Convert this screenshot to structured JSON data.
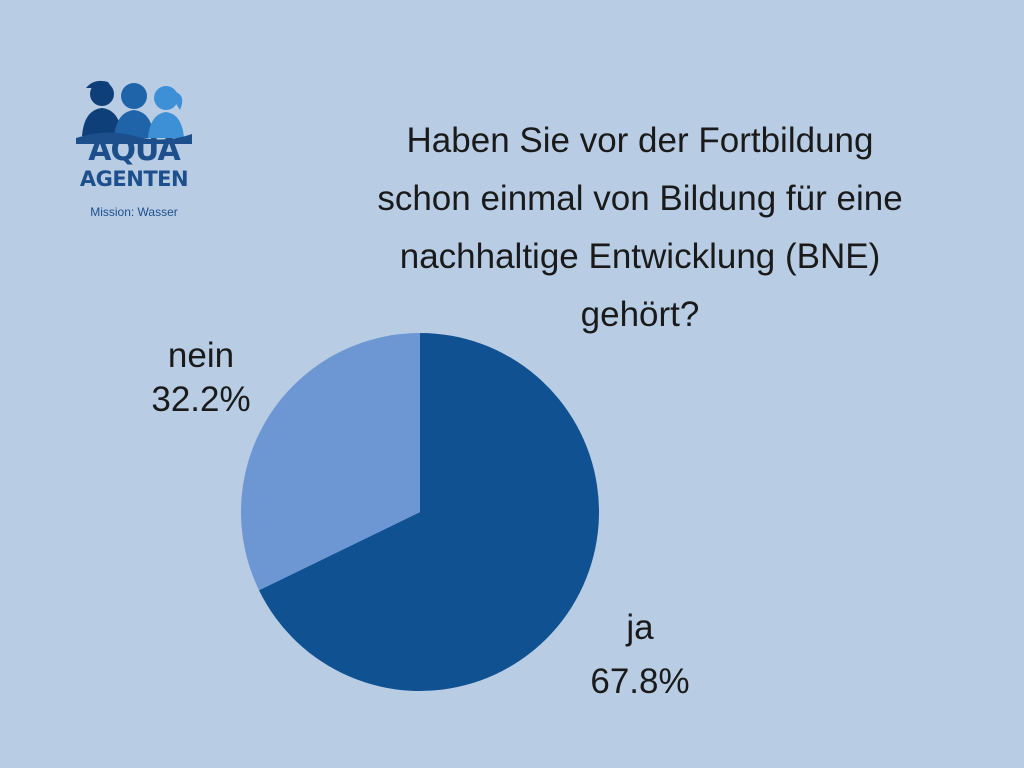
{
  "logo": {
    "line1": "AQUA",
    "line2": "AGENTEN",
    "tagline": "Mission: Wasser"
  },
  "chart_data": {
    "type": "pie",
    "title": "Haben Sie vor der Fortbildung\nschon einmal von Bildung für eine\nnachhaltige Entwicklung (BNE)\ngehört?",
    "slices": [
      {
        "name": "ja",
        "value": 67.8,
        "label": "67.8%",
        "color": "#0f5191"
      },
      {
        "name": "nein",
        "value": 32.2,
        "label": "32.2%",
        "color": "#6c97d3"
      }
    ],
    "start_angle": "12 o'clock",
    "direction": "clockwise",
    "legend": "none"
  },
  "colors": {
    "background": "#b8cde4",
    "logo": "#1d4f8c"
  }
}
